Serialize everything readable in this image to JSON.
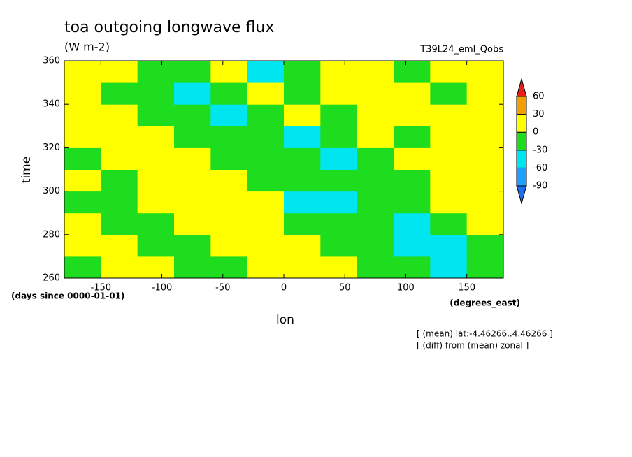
{
  "chart_data": {
    "type": "heatmap",
    "title": "toa outgoing longwave flux",
    "subtitle": "(W m-2)",
    "run_label": "T39L24_eml_Qobs",
    "x_label": "lon",
    "y_label": "time",
    "y_units": "(days since 0000-01-01)",
    "x_units": "(degrees_east)",
    "notes": [
      "[ (mean) lat:-4.46266..4.46266 ]",
      "[ (diff) from (mean) zonal ]"
    ],
    "x": [
      -165,
      -135,
      -105,
      -75,
      -45,
      -15,
      15,
      45,
      75,
      105,
      135,
      165
    ],
    "y": [
      265,
      275,
      285,
      295,
      305,
      315,
      325,
      335,
      345,
      355
    ],
    "z": [
      [
        -20,
        15,
        5,
        -10,
        -5,
        10,
        15,
        5,
        -15,
        -20,
        -50,
        -30
      ],
      [
        15,
        10,
        -20,
        -15,
        10,
        20,
        10,
        -10,
        -5,
        -35,
        -45,
        -10
      ],
      [
        10,
        -30,
        -10,
        20,
        15,
        5,
        -5,
        -20,
        -30,
        -40,
        -15,
        5
      ],
      [
        -25,
        -10,
        15,
        10,
        5,
        10,
        -35,
        -50,
        -20,
        -10,
        5,
        10
      ],
      [
        5,
        -15,
        10,
        5,
        15,
        -30,
        -10,
        -25,
        -15,
        -20,
        10,
        15
      ],
      [
        -10,
        10,
        20,
        15,
        -25,
        -10,
        -15,
        -40,
        -20,
        5,
        10,
        5
      ],
      [
        10,
        15,
        5,
        -10,
        -5,
        -20,
        -45,
        -15,
        5,
        -10,
        10,
        20
      ],
      [
        15,
        5,
        -30,
        -15,
        -40,
        -10,
        5,
        -20,
        10,
        15,
        5,
        10
      ],
      [
        5,
        -20,
        -10,
        -35,
        -15,
        10,
        -5,
        15,
        10,
        5,
        -15,
        10
      ],
      [
        10,
        5,
        -10,
        -5,
        10,
        -40,
        -20,
        5,
        10,
        -10,
        5,
        15
      ]
    ],
    "xlim": [
      -180,
      180
    ],
    "ylim": [
      260,
      360
    ],
    "xticks": [
      -150,
      -100,
      -50,
      0,
      50,
      100,
      150
    ],
    "yticks": [
      260,
      280,
      300,
      320,
      340,
      360
    ],
    "levels": [
      -90,
      -60,
      -30,
      0,
      30,
      60
    ],
    "colors": [
      "#1e6ef0",
      "#1ea0ff",
      "#00e6f0",
      "#1edc1e",
      "#ffff00",
      "#f0a000",
      "#e61e1e"
    ]
  }
}
